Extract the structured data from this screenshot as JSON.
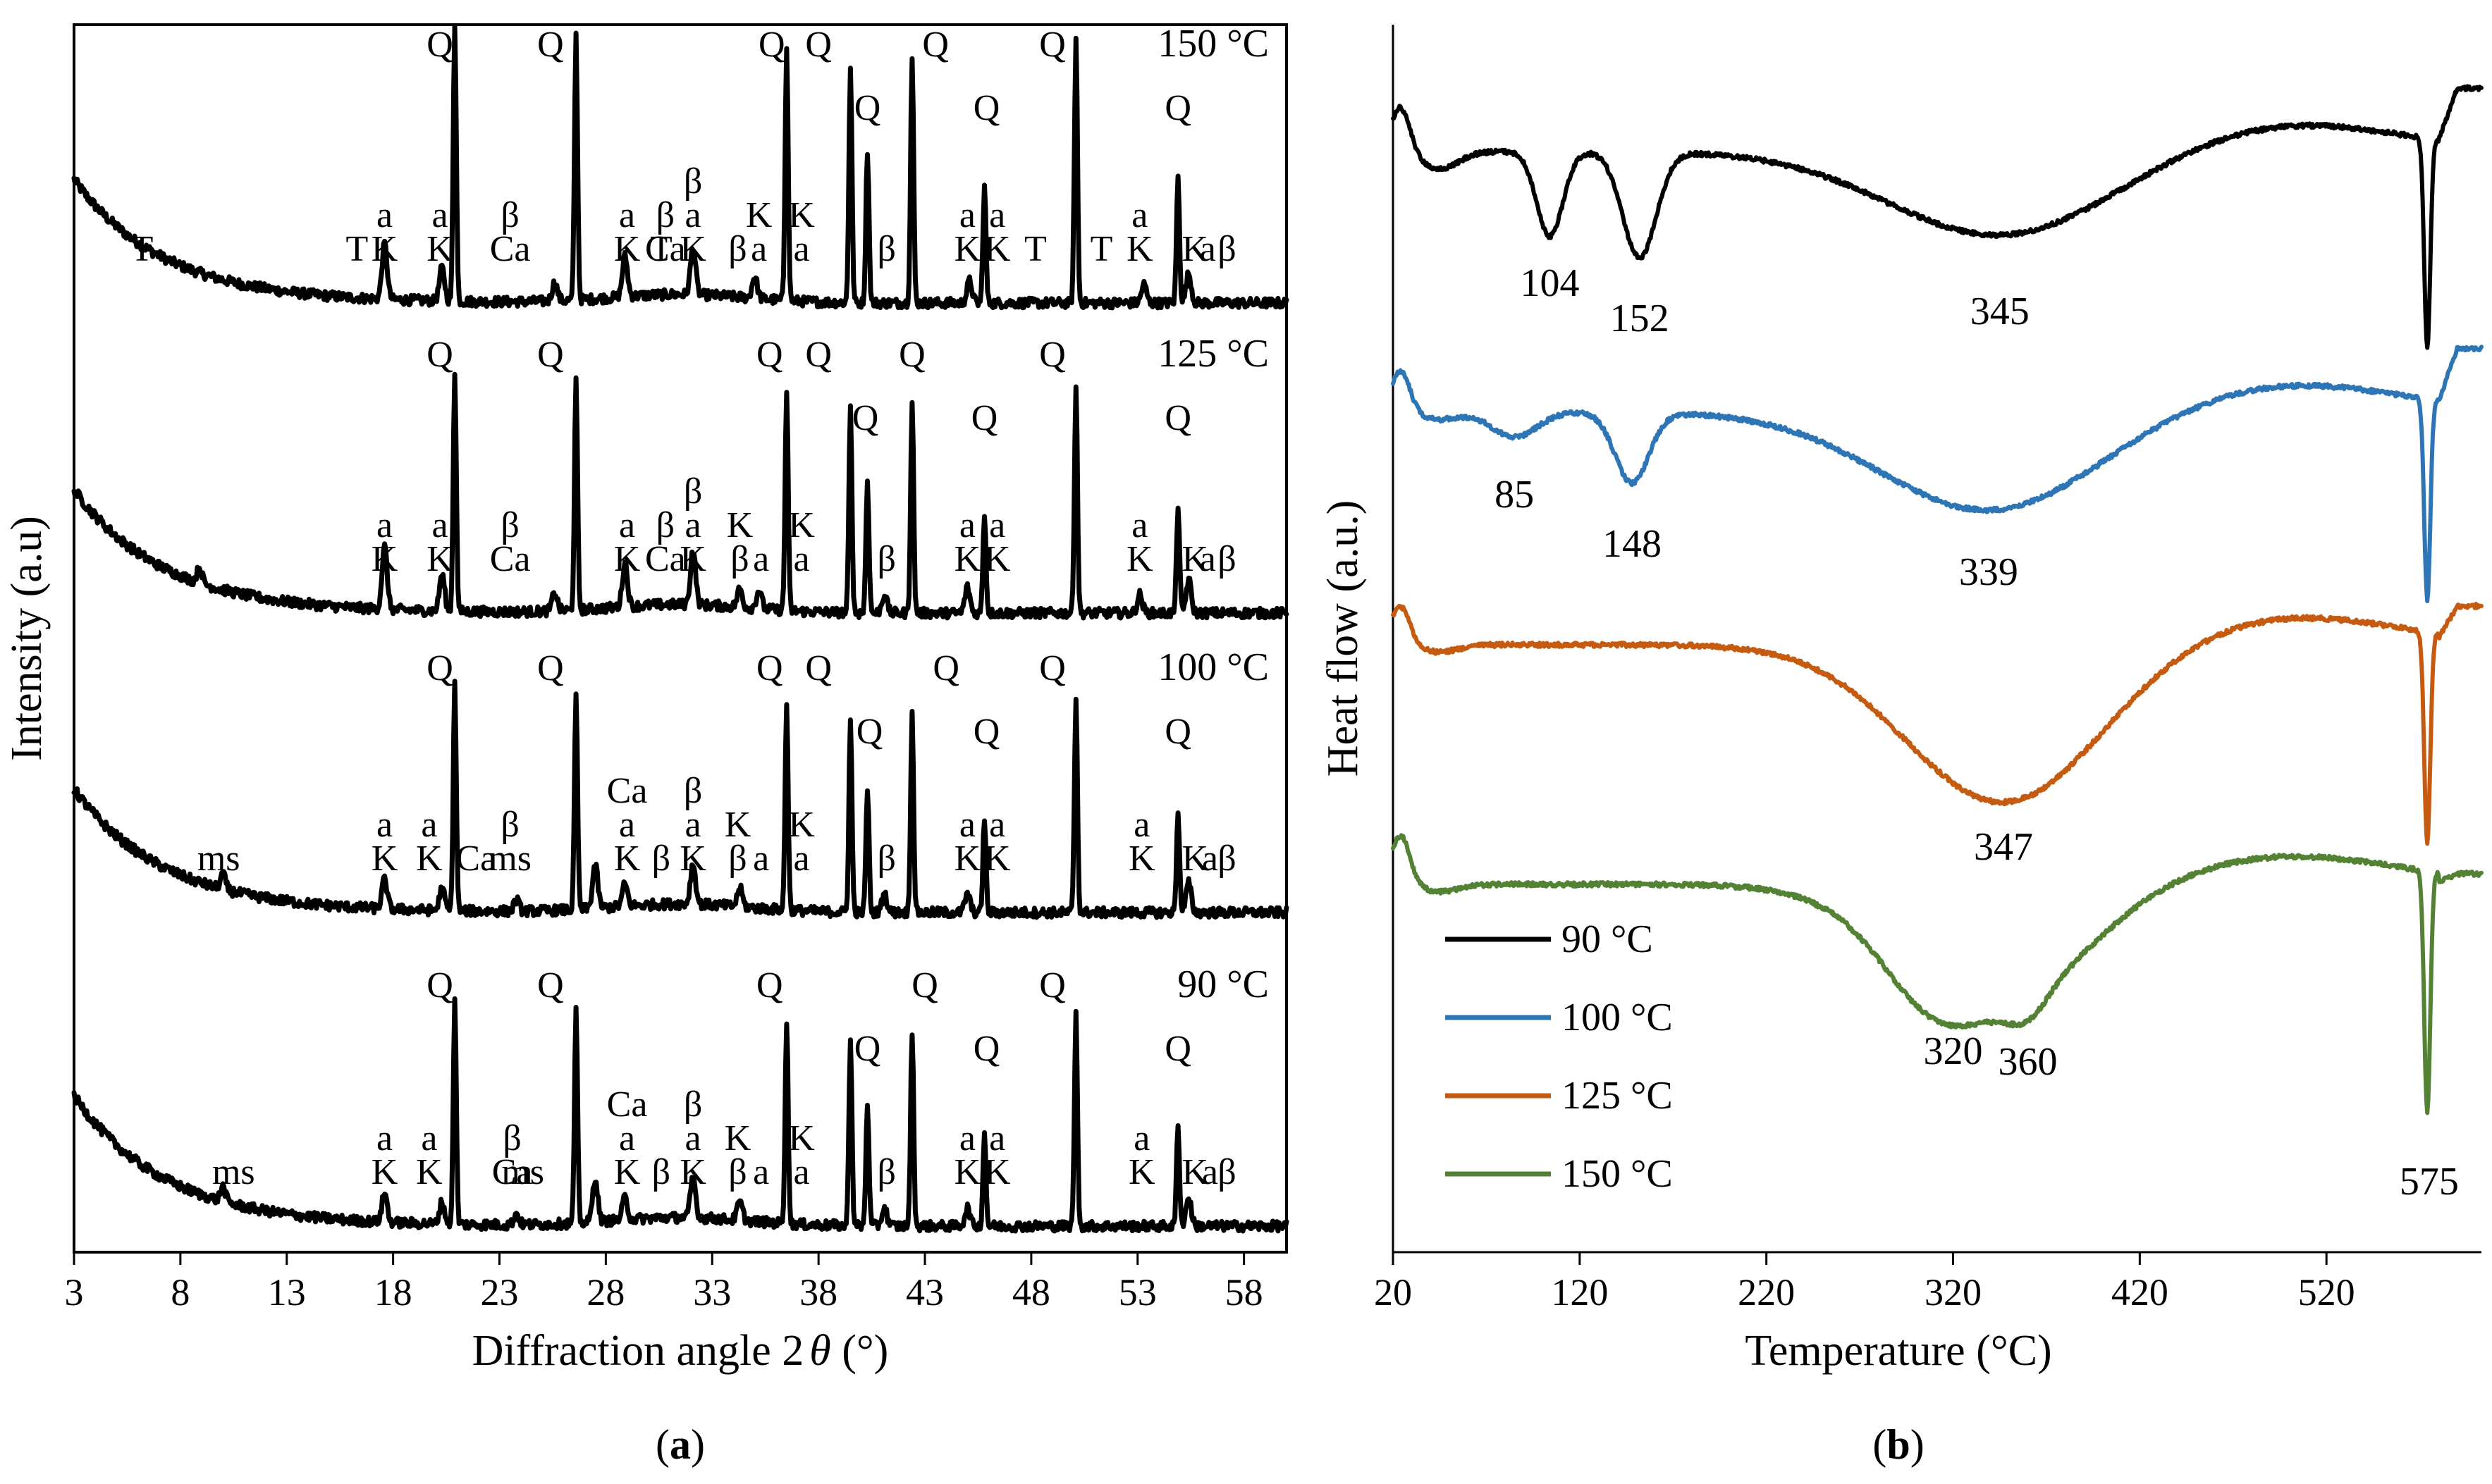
{
  "chart_data": [
    {
      "type": "line",
      "panel": "(a)",
      "panel_letter": "a",
      "title": "",
      "xlabel_main": "Diffraction angle 2",
      "xlabel_symbol": "θ",
      "xlabel_unit": " (°)",
      "ylabel": "Intensity (a.u)",
      "xlim": [
        3,
        60
      ],
      "x_ticks": [
        3,
        8,
        13,
        18,
        23,
        28,
        33,
        38,
        43,
        48,
        53,
        58
      ],
      "x_tick_labels": [
        "3",
        "8",
        "13",
        "18",
        "23",
        "28",
        "33",
        "38",
        "43",
        "48",
        "53",
        "58"
      ],
      "quartz_peaks": [
        20.9,
        26.6,
        36.5,
        39.5,
        40.3,
        42.4,
        45.8,
        50.1,
        54.9
      ],
      "series": [
        {
          "name": "150 °C",
          "temperature_label": "150 °C",
          "minor_peaks": [
            [
              17.6,
              0.3
            ],
            [
              20.3,
              0.18
            ],
            [
              25.6,
              0.1
            ],
            [
              28.9,
              0.22
            ],
            [
              32.1,
              0.26
            ],
            [
              35.0,
              0.12
            ],
            [
              45.1,
              0.12
            ],
            [
              53.3,
              0.1
            ],
            [
              55.4,
              0.16
            ]
          ],
          "annotations": [
            {
              "x": 6.2,
              "lines": [
                "T"
              ]
            },
            {
              "x": 16.3,
              "lines": [
                "T"
              ]
            },
            {
              "x": 17.6,
              "lines": [
                "a",
                "K"
              ]
            },
            {
              "x": 20.2,
              "lines": [
                "a",
                "K"
              ]
            },
            {
              "x": 23.5,
              "lines": [
                "β",
                "Ca"
              ]
            },
            {
              "x": 29.0,
              "lines": [
                "a",
                "K"
              ]
            },
            {
              "x": 30.8,
              "lines": [
                "β",
                "Ca"
              ]
            },
            {
              "x": 30.6,
              "lines": [
                "T"
              ]
            },
            {
              "x": 32.1,
              "lines": [
                "β",
                "a",
                "K"
              ]
            },
            {
              "x": 34.2,
              "lines": [
                "β"
              ]
            },
            {
              "x": 35.2,
              "lines": [
                "K",
                "a"
              ]
            },
            {
              "x": 37.2,
              "lines": [
                "K",
                "a"
              ]
            },
            {
              "x": 41.2,
              "lines": [
                "β"
              ]
            },
            {
              "x": 45.0,
              "lines": [
                "a",
                "K"
              ]
            },
            {
              "x": 46.4,
              "lines": [
                "a",
                "K"
              ]
            },
            {
              "x": 48.2,
              "lines": [
                "T"
              ]
            },
            {
              "x": 51.3,
              "lines": [
                "T"
              ]
            },
            {
              "x": 53.1,
              "lines": [
                "a",
                "K"
              ]
            },
            {
              "x": 55.7,
              "lines": [
                "K"
              ]
            },
            {
              "x": 56.3,
              "lines": [
                "a"
              ]
            },
            {
              "x": 57.2,
              "lines": [
                "β"
              ]
            },
            {
              "x": 20.2,
              "lines": [
                "Q"
              ]
            },
            {
              "x": 25.4,
              "lines": [
                "Q"
              ]
            },
            {
              "x": 35.8,
              "lines": [
                "Q"
              ]
            },
            {
              "x": 38.0,
              "lines": [
                "Q"
              ]
            },
            {
              "x": 40.3,
              "lines": [
                "Q"
              ]
            },
            {
              "x": 43.5,
              "lines": [
                "Q"
              ]
            },
            {
              "x": 45.9,
              "lines": [
                "Q"
              ]
            },
            {
              "x": 49.0,
              "lines": [
                "Q"
              ]
            },
            {
              "x": 54.9,
              "lines": [
                "Q"
              ]
            }
          ]
        },
        {
          "name": "125 °C",
          "temperature_label": "125 °C",
          "minor_peaks": [
            [
              8.9,
              0.08
            ],
            [
              17.6,
              0.34
            ],
            [
              20.3,
              0.2
            ],
            [
              25.6,
              0.1
            ],
            [
              28.9,
              0.24
            ],
            [
              32.1,
              0.3
            ],
            [
              34.3,
              0.1
            ],
            [
              35.2,
              0.1
            ],
            [
              41.1,
              0.1
            ],
            [
              45.0,
              0.14
            ],
            [
              53.1,
              0.1
            ],
            [
              55.4,
              0.18
            ]
          ],
          "annotations": [
            {
              "x": 17.6,
              "lines": [
                "a",
                "K"
              ]
            },
            {
              "x": 20.2,
              "lines": [
                "a",
                "K"
              ]
            },
            {
              "x": 23.5,
              "lines": [
                "β",
                "Ca"
              ]
            },
            {
              "x": 29.0,
              "lines": [
                "a",
                "K"
              ]
            },
            {
              "x": 30.8,
              "lines": [
                "β",
                "Ca"
              ]
            },
            {
              "x": 32.1,
              "lines": [
                "β",
                "a",
                "K"
              ]
            },
            {
              "x": 34.3,
              "lines": [
                "K",
                "β"
              ]
            },
            {
              "x": 35.3,
              "lines": [
                "a"
              ]
            },
            {
              "x": 37.2,
              "lines": [
                "K",
                "a"
              ]
            },
            {
              "x": 41.2,
              "lines": [
                "β"
              ]
            },
            {
              "x": 45.0,
              "lines": [
                "a",
                "K"
              ]
            },
            {
              "x": 46.4,
              "lines": [
                "a",
                "K"
              ]
            },
            {
              "x": 53.1,
              "lines": [
                "a",
                "K"
              ]
            },
            {
              "x": 55.7,
              "lines": [
                "K"
              ]
            },
            {
              "x": 56.3,
              "lines": [
                "a"
              ]
            },
            {
              "x": 57.2,
              "lines": [
                "β"
              ]
            },
            {
              "x": 20.2,
              "lines": [
                "Q"
              ]
            },
            {
              "x": 25.4,
              "lines": [
                "Q"
              ]
            },
            {
              "x": 35.7,
              "lines": [
                "Q"
              ]
            },
            {
              "x": 38.0,
              "lines": [
                "Q"
              ]
            },
            {
              "x": 40.2,
              "lines": [
                "Q"
              ]
            },
            {
              "x": 42.4,
              "lines": [
                "Q"
              ]
            },
            {
              "x": 45.8,
              "lines": [
                "Q"
              ]
            },
            {
              "x": 49.0,
              "lines": [
                "Q"
              ]
            },
            {
              "x": 54.9,
              "lines": [
                "Q"
              ]
            }
          ]
        },
        {
          "name": "100 °C",
          "temperature_label": "100 °C",
          "minor_peaks": [
            [
              10.0,
              0.08
            ],
            [
              17.6,
              0.16
            ],
            [
              20.3,
              0.12
            ],
            [
              23.8,
              0.06
            ],
            [
              27.5,
              0.24
            ],
            [
              28.9,
              0.12
            ],
            [
              32.1,
              0.22
            ],
            [
              34.3,
              0.1
            ],
            [
              41.1,
              0.1
            ],
            [
              45.0,
              0.1
            ],
            [
              55.4,
              0.16
            ]
          ],
          "annotations": [
            {
              "x": 9.8,
              "lines": [
                "ms"
              ]
            },
            {
              "x": 17.6,
              "lines": [
                "a",
                "K"
              ]
            },
            {
              "x": 19.7,
              "lines": [
                "a",
                "K"
              ]
            },
            {
              "x": 21.9,
              "lines": [
                "Ca"
              ]
            },
            {
              "x": 23.5,
              "lines": [
                "β",
                "ms"
              ]
            },
            {
              "x": 29.0,
              "lines": [
                "Ca",
                "a",
                "K"
              ]
            },
            {
              "x": 30.6,
              "lines": [
                "β"
              ]
            },
            {
              "x": 32.1,
              "lines": [
                "β",
                "a",
                "K"
              ]
            },
            {
              "x": 34.2,
              "lines": [
                "K",
                "β"
              ]
            },
            {
              "x": 35.3,
              "lines": [
                "a"
              ]
            },
            {
              "x": 37.2,
              "lines": [
                "K",
                "a"
              ]
            },
            {
              "x": 41.2,
              "lines": [
                "β"
              ]
            },
            {
              "x": 45.0,
              "lines": [
                "a",
                "K"
              ]
            },
            {
              "x": 46.4,
              "lines": [
                "a",
                "K"
              ]
            },
            {
              "x": 53.2,
              "lines": [
                "a",
                "K"
              ]
            },
            {
              "x": 55.7,
              "lines": [
                "K"
              ]
            },
            {
              "x": 56.4,
              "lines": [
                "a"
              ]
            },
            {
              "x": 57.2,
              "lines": [
                "β"
              ]
            },
            {
              "x": 20.2,
              "lines": [
                "Q"
              ]
            },
            {
              "x": 25.4,
              "lines": [
                "Q"
              ]
            },
            {
              "x": 35.7,
              "lines": [
                "Q"
              ]
            },
            {
              "x": 38.0,
              "lines": [
                "Q"
              ]
            },
            {
              "x": 40.4,
              "lines": [
                "Q"
              ]
            },
            {
              "x": 44.0,
              "lines": [
                "Q"
              ]
            },
            {
              "x": 45.9,
              "lines": [
                "Q"
              ]
            },
            {
              "x": 49.0,
              "lines": [
                "Q"
              ]
            },
            {
              "x": 54.9,
              "lines": [
                "Q"
              ]
            }
          ]
        },
        {
          "name": "90 °C",
          "temperature_label": "90 °C",
          "minor_peaks": [
            [
              10.0,
              0.08
            ],
            [
              17.6,
              0.16
            ],
            [
              20.3,
              0.12
            ],
            [
              23.8,
              0.06
            ],
            [
              27.5,
              0.24
            ],
            [
              28.9,
              0.12
            ],
            [
              32.1,
              0.22
            ],
            [
              34.3,
              0.1
            ],
            [
              41.1,
              0.1
            ],
            [
              45.0,
              0.1
            ],
            [
              55.4,
              0.16
            ]
          ],
          "annotations": [
            {
              "x": 10.5,
              "lines": [
                "ms"
              ]
            },
            {
              "x": 17.6,
              "lines": [
                "a",
                "K"
              ]
            },
            {
              "x": 19.7,
              "lines": [
                "a",
                "K"
              ]
            },
            {
              "x": 23.6,
              "lines": [
                "β",
                "Ca"
              ]
            },
            {
              "x": 24.1,
              "lines": [
                "ms"
              ]
            },
            {
              "x": 29.0,
              "lines": [
                "Ca",
                "a",
                "K"
              ]
            },
            {
              "x": 30.6,
              "lines": [
                "β"
              ]
            },
            {
              "x": 32.1,
              "lines": [
                "β",
                "a",
                "K"
              ]
            },
            {
              "x": 34.2,
              "lines": [
                "K",
                "β"
              ]
            },
            {
              "x": 35.3,
              "lines": [
                "a"
              ]
            },
            {
              "x": 37.2,
              "lines": [
                "K",
                "a"
              ]
            },
            {
              "x": 41.2,
              "lines": [
                "β"
              ]
            },
            {
              "x": 45.0,
              "lines": [
                "a",
                "K"
              ]
            },
            {
              "x": 46.4,
              "lines": [
                "a",
                "K"
              ]
            },
            {
              "x": 53.2,
              "lines": [
                "a",
                "K"
              ]
            },
            {
              "x": 55.7,
              "lines": [
                "K"
              ]
            },
            {
              "x": 56.4,
              "lines": [
                "a"
              ]
            },
            {
              "x": 57.2,
              "lines": [
                "β"
              ]
            },
            {
              "x": 20.2,
              "lines": [
                "Q"
              ]
            },
            {
              "x": 25.4,
              "lines": [
                "Q"
              ]
            },
            {
              "x": 35.7,
              "lines": [
                "Q"
              ]
            },
            {
              "x": 40.3,
              "lines": [
                "Q"
              ]
            },
            {
              "x": 43.0,
              "lines": [
                "Q"
              ]
            },
            {
              "x": 45.9,
              "lines": [
                "Q"
              ]
            },
            {
              "x": 49.0,
              "lines": [
                "Q"
              ]
            },
            {
              "x": 54.9,
              "lines": [
                "Q"
              ]
            }
          ]
        }
      ]
    },
    {
      "type": "line",
      "panel": "(b)",
      "panel_letter": "b",
      "title": "",
      "xlabel": "Temperature (°C)",
      "ylabel": "Heat flow (a.u.)",
      "xlim": [
        20,
        603
      ],
      "x_ticks": [
        20,
        120,
        220,
        320,
        420,
        520
      ],
      "x_tick_labels": [
        "20",
        "120",
        "220",
        "320",
        "420",
        "520"
      ],
      "series": [
        {
          "name": "90 °C",
          "color": "#000000",
          "minima": [
            {
              "x": 104,
              "label": "104"
            },
            {
              "x": 152,
              "label": "152"
            },
            {
              "x": 345,
              "label": "345"
            },
            {
              "x": 575,
              "label": ""
            }
          ]
        },
        {
          "name": "100 °C",
          "color": "#2e75b6",
          "minima": [
            {
              "x": 85,
              "label": "85"
            },
            {
              "x": 148,
              "label": "148"
            },
            {
              "x": 339,
              "label": "339"
            },
            {
              "x": 575,
              "label": ""
            }
          ]
        },
        {
          "name": "125 °C",
          "color": "#c55a11",
          "minima": [
            {
              "x": 347,
              "label": "347"
            },
            {
              "x": 575,
              "label": ""
            }
          ]
        },
        {
          "name": "150 °C",
          "color": "#548235",
          "minima": [
            {
              "x": 320,
              "label": "320"
            },
            {
              "x": 360,
              "label": "360"
            },
            {
              "x": 575,
              "label": "575"
            }
          ]
        }
      ],
      "legend_position": "bottom-left"
    }
  ]
}
